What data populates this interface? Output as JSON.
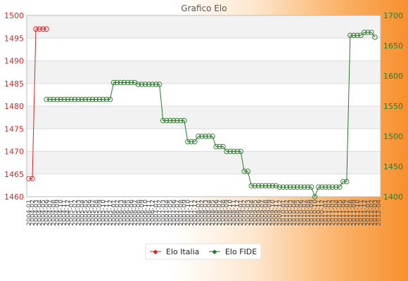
{
  "chart_data": {
    "type": "line",
    "title": "Grafico Elo",
    "y_left": {
      "range": [
        1460,
        1500
      ],
      "ticks": [
        1460,
        1465,
        1470,
        1475,
        1480,
        1485,
        1490,
        1495,
        1500
      ],
      "color": "#dd2222"
    },
    "y_right": {
      "range": [
        1400,
        1700
      ],
      "ticks": [
        1400,
        1450,
        1500,
        1550,
        1600,
        1650,
        1700
      ],
      "color": "#2a7a2a"
    },
    "grid": true,
    "legend_position": "bottom-center",
    "x_count": 100,
    "x_tick_labels": [
      "2004-01",
      "2004-02",
      "2004-03",
      "2004-04",
      "2004-05",
      "2004-06",
      "2004-07",
      "2004-08",
      "2004-09",
      "2004-10",
      "2004-11",
      "2004-12",
      "2005-01",
      "2005-02",
      "2005-03",
      "2005-04",
      "2005-05",
      "2005-06",
      "2005-07",
      "2005-08",
      "2005-09",
      "2005-10",
      "2005-11",
      "2005-12",
      "2006-01",
      "2006-02",
      "2006-03",
      "2006-04",
      "2006-05",
      "2006-06",
      "2006-07",
      "2006-08",
      "2006-09",
      "2006-10",
      "2006-11",
      "2006-12",
      "2007-01",
      "2007-02",
      "2007-03",
      "2007-04",
      "2007-05",
      "2007-06",
      "2007-07",
      "2007-08",
      "2007-09",
      "2007-10",
      "2007-11",
      "2007-12",
      "2008-01",
      "2008-02",
      "2008-03",
      "2008-04",
      "2008-05",
      "2008-06",
      "2008-07",
      "2008-08",
      "2008-09",
      "2008-10",
      "2008-11",
      "2008-12",
      "2009-01",
      "2009-02",
      "2009-03",
      "2009-04",
      "2009-05",
      "2009-06",
      "2009-07",
      "2009-08",
      "2009-09",
      "2009-10",
      "2009-11",
      "2009-12",
      "2010-01",
      "2010-02",
      "2010-03",
      "2010-04",
      "2010-05",
      "2010-06",
      "2010-07",
      "2010-08",
      "2010-09",
      "2010-10",
      "2010-11",
      "2010-12",
      "2011-01",
      "2011-02",
      "2011-03",
      "2011-04",
      "2011-05",
      "2011-06",
      "2011-07",
      "2011-08",
      "2011-09",
      "2011-10",
      "2011-11",
      "2011-12",
      "2012-01",
      "2012-02",
      "2012-03",
      "2012-04"
    ],
    "series": [
      {
        "name": "Elo Italia",
        "color": "#dd2222",
        "axis": "left",
        "segments": [
          {
            "from": 0,
            "to": 1,
            "value": 1464
          },
          {
            "from": 2,
            "to": 5,
            "value": 1497
          }
        ]
      },
      {
        "name": "Elo FIDE",
        "color": "#2a7a2a",
        "axis": "right",
        "segments": [
          {
            "from": 5,
            "to": 23,
            "value": 1561
          },
          {
            "from": 24,
            "to": 30,
            "value": 1589
          },
          {
            "from": 31,
            "to": 37,
            "value": 1586
          },
          {
            "from": 38,
            "to": 44,
            "value": 1526
          },
          {
            "from": 45,
            "to": 47,
            "value": 1491
          },
          {
            "from": 48,
            "to": 52,
            "value": 1500
          },
          {
            "from": 53,
            "to": 55,
            "value": 1483
          },
          {
            "from": 56,
            "to": 60,
            "value": 1475
          },
          {
            "from": 61,
            "to": 62,
            "value": 1442
          },
          {
            "from": 63,
            "to": 70,
            "value": 1418
          },
          {
            "from": 71,
            "to": 80,
            "value": 1416
          },
          {
            "from": 81,
            "to": 81,
            "value": 1400
          },
          {
            "from": 82,
            "to": 88,
            "value": 1416
          },
          {
            "from": 89,
            "to": 90,
            "value": 1425
          },
          {
            "from": 91,
            "to": 94,
            "value": 1667
          },
          {
            "from": 95,
            "to": 97,
            "value": 1672
          },
          {
            "from": 98,
            "to": 98,
            "value": 1664
          }
        ]
      }
    ]
  }
}
